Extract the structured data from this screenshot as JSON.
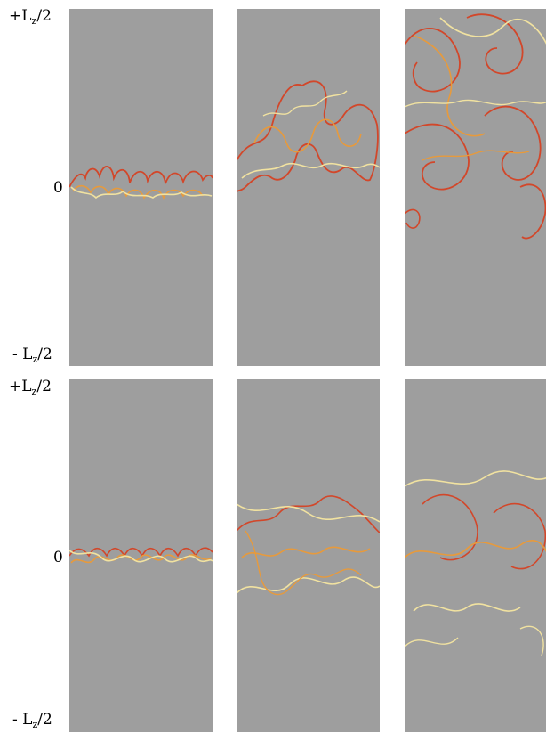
{
  "figure": {
    "rows": [
      {
        "labels": {
          "top_main": "+L",
          "top_sub": "z",
          "top_tail": "/2",
          "mid": "0",
          "bot_main": "- L",
          "bot_sub": "z",
          "bot_tail": "/2"
        }
      },
      {
        "labels": {
          "top_main": "+L",
          "top_sub": "z",
          "top_tail": "/2",
          "mid": "0",
          "bot_main": "- L",
          "bot_sub": "z",
          "bot_tail": "/2"
        }
      }
    ],
    "colors": {
      "background": "#9e9e9e",
      "strong": "#d2472a",
      "medium": "#e79a3c",
      "weak": "#f1e2a0"
    }
  }
}
